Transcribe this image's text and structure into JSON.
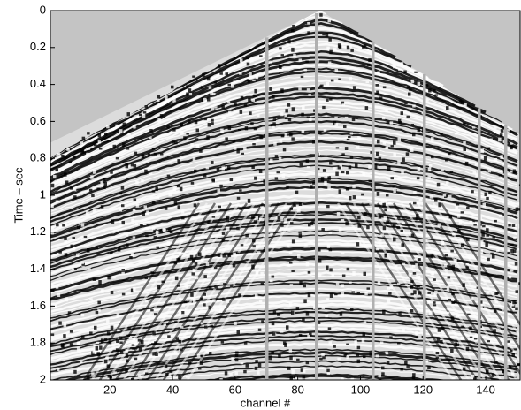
{
  "chart_data": {
    "type": "image",
    "xlabel": "channel #",
    "ylabel": "Time – sec",
    "xlim": [
      1,
      151
    ],
    "xticks": [
      20,
      40,
      60,
      80,
      100,
      120,
      140
    ],
    "ylim": [
      0,
      2
    ],
    "yticks": [
      0,
      0.2,
      0.4,
      0.6,
      0.8,
      1,
      1.2,
      1.4,
      1.6,
      1.8,
      2
    ],
    "y_inverted": true
  }
}
